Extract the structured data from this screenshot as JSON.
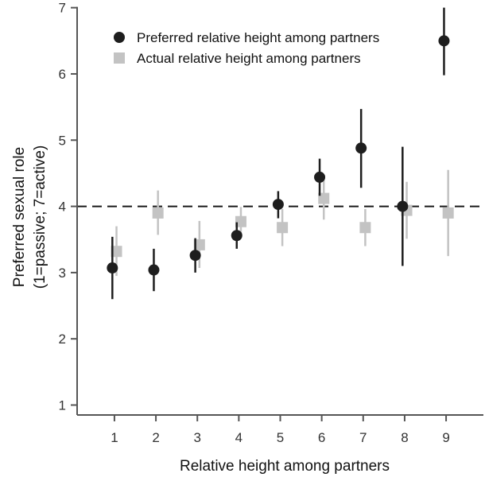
{
  "chart_data": {
    "type": "scatter",
    "xlabel": "Relative height among partners",
    "ylabel_lines": [
      "Preferred sexual role",
      "(1=passive; 7=active)"
    ],
    "x_ticks": [
      1,
      2,
      3,
      4,
      5,
      6,
      7,
      8,
      9
    ],
    "y_ticks": [
      1,
      2,
      3,
      4,
      5,
      6,
      7
    ],
    "xlim": [
      0.1,
      9.9
    ],
    "ylim": [
      0.85,
      7.02
    ],
    "reference_line": {
      "y": 4,
      "style": "dashed"
    },
    "legend_position": "top",
    "series": [
      {
        "name": "Preferred relative height among partners",
        "marker": "circle",
        "color": "#1e1e1e",
        "points": [
          {
            "x": 1,
            "y": 3.07,
            "lo": 2.6,
            "hi": 3.54
          },
          {
            "x": 2,
            "y": 3.04,
            "lo": 2.72,
            "hi": 3.36
          },
          {
            "x": 3,
            "y": 3.26,
            "lo": 3.0,
            "hi": 3.52
          },
          {
            "x": 4,
            "y": 3.56,
            "lo": 3.36,
            "hi": 3.76
          },
          {
            "x": 5,
            "y": 4.03,
            "lo": 3.82,
            "hi": 4.23
          },
          {
            "x": 6,
            "y": 4.44,
            "lo": 4.16,
            "hi": 4.72
          },
          {
            "x": 7,
            "y": 4.88,
            "lo": 4.28,
            "hi": 5.47
          },
          {
            "x": 8,
            "y": 4.0,
            "lo": 3.1,
            "hi": 4.9
          },
          {
            "x": 9,
            "y": 6.5,
            "lo": 5.98,
            "hi": 7.0
          }
        ]
      },
      {
        "name": "Actual relative height among partners",
        "marker": "square",
        "color": "#c3c3c3",
        "points": [
          {
            "x": 1,
            "y": 3.32,
            "lo": 2.95,
            "hi": 3.7
          },
          {
            "x": 2,
            "y": 3.9,
            "lo": 3.57,
            "hi": 4.24
          },
          {
            "x": 3,
            "y": 3.42,
            "lo": 3.07,
            "hi": 3.78
          },
          {
            "x": 4,
            "y": 3.77,
            "lo": 3.55,
            "hi": 3.99
          },
          {
            "x": 5,
            "y": 3.68,
            "lo": 3.4,
            "hi": 3.96
          },
          {
            "x": 6,
            "y": 4.12,
            "lo": 3.8,
            "hi": 4.44
          },
          {
            "x": 7,
            "y": 3.68,
            "lo": 3.4,
            "hi": 3.96
          },
          {
            "x": 8,
            "y": 3.94,
            "lo": 3.51,
            "hi": 4.37
          },
          {
            "x": 9,
            "y": 3.9,
            "lo": 3.25,
            "hi": 4.55
          }
        ]
      }
    ]
  }
}
